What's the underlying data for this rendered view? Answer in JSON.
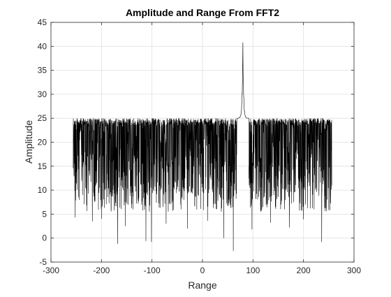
{
  "figure": {
    "background": "#ffffff",
    "axes_background": "#ffffff"
  },
  "chart_data": {
    "type": "line",
    "title": "Amplitude and Range From FFT2",
    "xlabel": "Range",
    "ylabel": "Amplitude",
    "xlim": [
      -300,
      300
    ],
    "ylim": [
      -5,
      45
    ],
    "xticks": [
      -300,
      -200,
      -100,
      0,
      100,
      200,
      300
    ],
    "yticks": [
      -5,
      0,
      5,
      10,
      15,
      20,
      25,
      30,
      35,
      40,
      45
    ],
    "xtick_labels": [
      "-300",
      "-200",
      "-100",
      "0",
      "100",
      "200",
      "300"
    ],
    "ytick_labels": [
      "-5",
      "0",
      "5",
      "10",
      "15",
      "20",
      "25",
      "30",
      "35",
      "40",
      "45"
    ],
    "grid": true,
    "legend": false,
    "series": [
      {
        "color": "#000000",
        "x_range": [
          -256,
          256
        ],
        "noise_band": {
          "upper": 25,
          "typical_lower": 10,
          "min_approx": -2.7
        },
        "peak": {
          "x": 80,
          "y": 40.8
        },
        "deep_dips": [
          {
            "x": -252,
            "y": 4.3
          },
          {
            "x": -218,
            "y": 3.5
          },
          {
            "x": -200,
            "y": 4.0
          },
          {
            "x": -168,
            "y": -1.2
          },
          {
            "x": -153,
            "y": 2.5
          },
          {
            "x": -112,
            "y": -0.6
          },
          {
            "x": -101,
            "y": -0.8
          },
          {
            "x": -72,
            "y": 3.0
          },
          {
            "x": -30,
            "y": 2.0
          },
          {
            "x": 10,
            "y": 3.6
          },
          {
            "x": 42,
            "y": 0.0
          },
          {
            "x": 61,
            "y": -2.7
          },
          {
            "x": 98,
            "y": 1.8
          },
          {
            "x": 135,
            "y": 3.2
          },
          {
            "x": 172,
            "y": 2.2
          },
          {
            "x": 200,
            "y": 3.9
          },
          {
            "x": 236,
            "y": -0.8
          },
          {
            "x": 252,
            "y": 5.8
          }
        ]
      }
    ]
  }
}
